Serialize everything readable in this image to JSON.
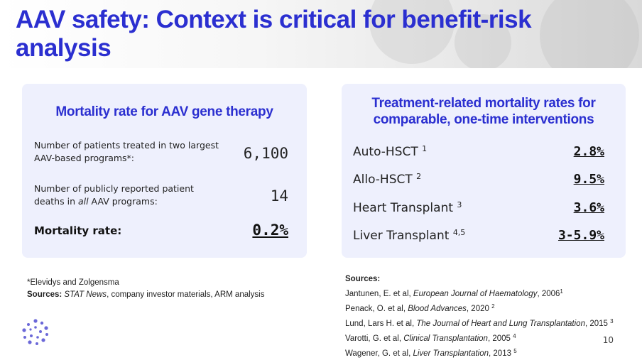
{
  "header": {
    "title": "AAV safety: Context is critical for benefit-risk analysis"
  },
  "left_panel": {
    "title": "Mortality rate for AAV gene therapy",
    "metrics": [
      {
        "label": "Number of patients treated in two largest AAV-based programs*:",
        "value": "6,100"
      },
      {
        "label_pre": "Number of publicly reported patient deaths in ",
        "label_em": "all",
        "label_post": " AAV programs:",
        "value": "14"
      }
    ],
    "mortality_label": "Mortality rate:",
    "mortality_value": "0.2%"
  },
  "right_panel": {
    "title_line1": "Treatment-related mortality rates for",
    "title_line2": "comparable, one-time interventions",
    "rows": [
      {
        "label": "Auto-HSCT",
        "sup": "1",
        "value": "2.8%"
      },
      {
        "label": "Allo-HSCT",
        "sup": "2",
        "value": "9.5%"
      },
      {
        "label": "Heart Transplant",
        "sup": "3",
        "value": "3.6%"
      },
      {
        "label": "Liver Transplant",
        "sup": "4,5",
        "value": "3-5.9%"
      }
    ]
  },
  "left_footnote": {
    "asterisk_note": "*Elevidys and Zolgensma",
    "sources_label": "Sources:",
    "sources_em": "STAT News",
    "sources_rest": ", company investor materials, ARM analysis"
  },
  "right_sources": {
    "label": "Sources:",
    "items": [
      {
        "pre": "Jantunen, E. et al, ",
        "em": "European Journal of Haematology",
        "post": ", 2006",
        "sup": "1"
      },
      {
        "pre": "Penack, O. et al, ",
        "em": "Blood Advances",
        "post": ", 2020 ",
        "sup": "2"
      },
      {
        "pre": "Lund, Lars H. et al, ",
        "em": "The Journal of Heart and Lung Transplantation",
        "post": ", 2015 ",
        "sup": "3"
      },
      {
        "pre": "Varotti, G. et al, ",
        "em": "Clinical Transplantation",
        "post": ", 2005 ",
        "sup": "4"
      },
      {
        "pre": "Wagener, G. et al, ",
        "em": "Liver Transplantation",
        "post": ", 2013 ",
        "sup": "5"
      }
    ]
  },
  "page_number": "10",
  "colors": {
    "accent": "#2b2fd0",
    "panel": "#eef0fd",
    "logo": "#6b68d8"
  },
  "icons": {
    "logo": "dot-cluster-logo"
  }
}
